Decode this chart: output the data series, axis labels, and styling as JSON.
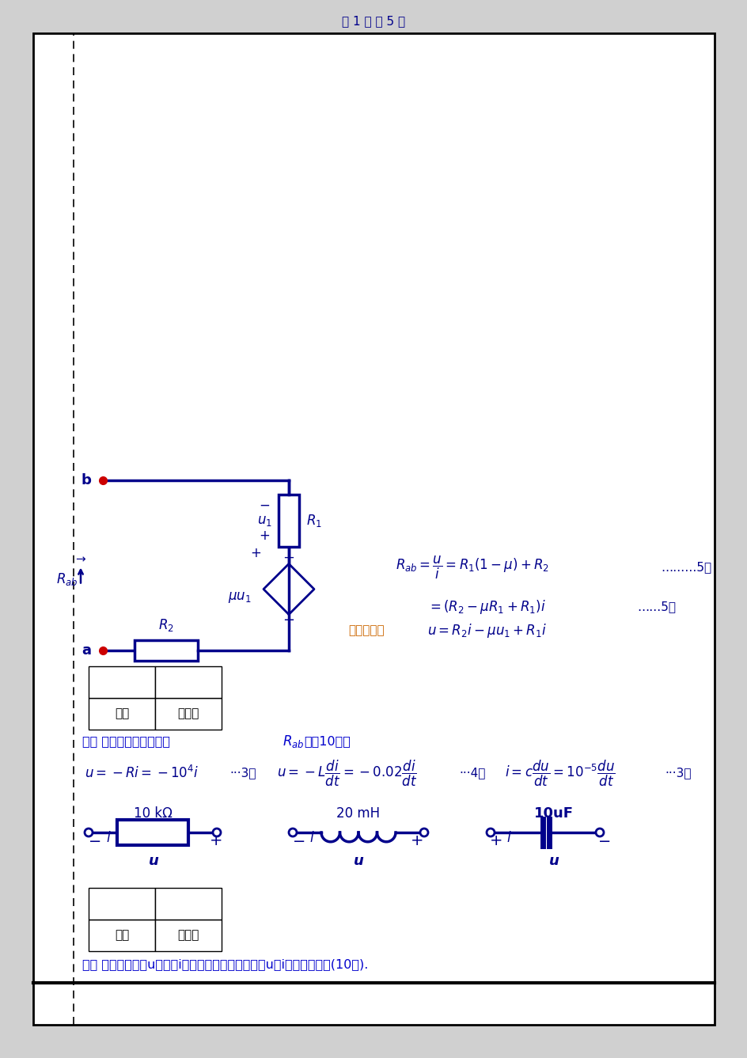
{
  "bg_color": "#ffffff",
  "border_color": "#000000",
  "blue": "#00008B",
  "blue_text": "#0000CD",
  "orange_text": "#CC6600",
  "red_dot": "#CC0000",
  "page_bg": "#d0d0d0",
  "footer": "第 1 页 共 5 页",
  "title1": "一、 在指定的电压u和电流i参考方向下，写出各元件u和i的约束方程。(10分).",
  "title2_a": "二、 试求下图的输入电阻",
  "title2_b": "。（10分）",
  "table_h1": "得分",
  "table_h2": "评阅人",
  "res_label": "10 kΩ",
  "ind_label": "20 mH",
  "cap_label": "10uF",
  "eq1": "$u = -Ri = -10^4i$",
  "eq1_pts": "···3分",
  "eq2a": "$u = -L$",
  "eq2b": "$\\frac{di}{dt}$",
  "eq2c": "$= -0.02$",
  "eq2d": "$\\frac{di}{dt}$",
  "eq2_pts": "···4分",
  "eq3a": "$i = c$",
  "eq3b": "$\\frac{du}{dt}$",
  "eq3c": "$= 10^{-5}$",
  "eq3d": "$\\frac{du}{dt}$",
  "eq3_pts": "···3分",
  "circ2_eq1a": "加压求流：",
  "circ2_eq1b": "$u = R_2i - \\mu u_1 + R_1i$",
  "circ2_eq2": "$= (R_2 - \\mu R_1 + R_1)i$",
  "circ2_eq2_pts": "……5分",
  "circ2_eq3": "$R_{ab} = \\dfrac{u}{i} = R_1(1-\\mu) + R_2$",
  "circ2_eq3_pts": "………5分"
}
